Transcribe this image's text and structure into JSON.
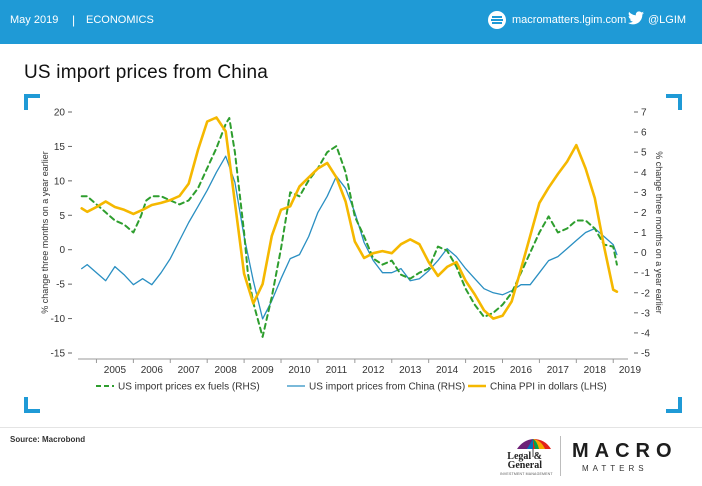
{
  "header": {
    "date": "May 2019",
    "separator": "|",
    "section": "ECONOMICS",
    "website": "macromatters.lgim.com",
    "twitter": "@LGIM",
    "bar_color": "#1f9ad6"
  },
  "page_title": "US import prices from China",
  "footer": {
    "source": "Source: Macrobond",
    "lg_name_line1": "Legal &",
    "lg_name_line2": "General",
    "lg_sub": "INVESTMENT MANAGEMENT",
    "brand_macro": "MACRO",
    "brand_matters": "MATTERS"
  },
  "chart_data": {
    "type": "line",
    "x_tick_labels": [
      "2005",
      "2006",
      "2007",
      "2008",
      "2009",
      "2010",
      "2011",
      "2012",
      "2013",
      "2014",
      "2015",
      "2016",
      "2017",
      "2018",
      "2019"
    ],
    "xlim": [
      2004.5,
      2019.4
    ],
    "left_axis": {
      "label": "% change three months on a year earlier",
      "ylim": [
        -15,
        20
      ],
      "ticks": [
        20,
        15,
        10,
        5,
        0,
        -5,
        -10,
        -15
      ],
      "tick_labels": [
        "20",
        "15",
        "10",
        "5",
        "0",
        "-5",
        "-10",
        "-15"
      ]
    },
    "right_axis": {
      "label": "% change three months on a year earlier",
      "ylim": [
        -5,
        7
      ],
      "ticks": [
        7,
        6,
        5,
        4,
        3,
        2,
        1,
        0,
        -1,
        -2,
        -3,
        -4,
        -5
      ],
      "tick_labels": [
        "7",
        "6",
        "5",
        "4",
        "3",
        "2",
        "1",
        "0",
        "-1",
        "-2",
        "-3",
        "-4",
        "-5"
      ]
    },
    "series": [
      {
        "name": "US import prices ex fuels (RHS)",
        "axis": "right",
        "color": "#2e9e2e",
        "style": "dashed",
        "x": [
          2004.6,
          2004.75,
          2005.0,
          2005.25,
          2005.5,
          2005.75,
          2006.0,
          2006.2,
          2006.35,
          2006.5,
          2006.75,
          2007.0,
          2007.25,
          2007.5,
          2007.75,
          2008.0,
          2008.25,
          2008.5,
          2008.6,
          2008.75,
          2009.0,
          2009.1,
          2009.25,
          2009.5,
          2009.75,
          2010.0,
          2010.25,
          2010.5,
          2010.75,
          2011.0,
          2011.25,
          2011.5,
          2011.75,
          2012.0,
          2012.25,
          2012.5,
          2012.75,
          2013.0,
          2013.25,
          2013.5,
          2013.75,
          2014.0,
          2014.25,
          2014.5,
          2014.75,
          2015.0,
          2015.25,
          2015.5,
          2015.75,
          2016.0,
          2016.25,
          2016.5,
          2016.75,
          2017.0,
          2017.25,
          2017.5,
          2017.75,
          2018.0,
          2018.25,
          2018.5,
          2018.75,
          2019.0,
          2019.1
        ],
        "y": [
          2.8,
          2.8,
          2.4,
          2.0,
          1.6,
          1.4,
          1.0,
          1.8,
          2.6,
          2.8,
          2.8,
          2.6,
          2.4,
          2.6,
          3.2,
          4.2,
          5.2,
          6.4,
          6.7,
          5.0,
          1.0,
          -1.0,
          -2.5,
          -4.2,
          -2.2,
          0.2,
          3.0,
          2.8,
          3.6,
          4.2,
          5.0,
          5.3,
          4.0,
          1.8,
          0.8,
          -0.3,
          -0.6,
          -0.4,
          -1.1,
          -1.3,
          -1.0,
          -0.8,
          0.3,
          0.1,
          -0.7,
          -1.8,
          -2.6,
          -3.2,
          -3.0,
          -2.6,
          -2.0,
          -1.0,
          0.0,
          1.0,
          1.8,
          1.0,
          1.2,
          1.6,
          1.6,
          1.2,
          0.4,
          0.3,
          -0.6
        ]
      },
      {
        "name": "US import prices from China (RHS)",
        "axis": "right",
        "color": "#2a8fc2",
        "style": "solid",
        "x": [
          2004.6,
          2004.75,
          2005.0,
          2005.25,
          2005.5,
          2005.75,
          2006.0,
          2006.25,
          2006.5,
          2006.75,
          2007.0,
          2007.25,
          2007.5,
          2007.75,
          2008.0,
          2008.25,
          2008.5,
          2008.75,
          2009.0,
          2009.25,
          2009.5,
          2009.75,
          2010.0,
          2010.25,
          2010.5,
          2010.75,
          2011.0,
          2011.25,
          2011.5,
          2011.75,
          2012.0,
          2012.25,
          2012.5,
          2012.75,
          2013.0,
          2013.25,
          2013.5,
          2013.75,
          2014.0,
          2014.25,
          2014.5,
          2014.75,
          2015.0,
          2015.25,
          2015.5,
          2015.75,
          2016.0,
          2016.25,
          2016.5,
          2016.75,
          2017.0,
          2017.25,
          2017.5,
          2017.75,
          2018.0,
          2018.25,
          2018.5,
          2018.75,
          2019.0,
          2019.1
        ],
        "y": [
          -0.8,
          -0.6,
          -1.0,
          -1.4,
          -0.7,
          -1.1,
          -1.6,
          -1.3,
          -1.6,
          -1.0,
          -0.3,
          0.6,
          1.5,
          2.3,
          3.1,
          4.0,
          4.8,
          3.5,
          0.8,
          -1.4,
          -3.3,
          -2.4,
          -1.3,
          -0.3,
          -0.1,
          0.8,
          2.0,
          2.8,
          3.8,
          3.2,
          2.0,
          0.5,
          -0.4,
          -1.0,
          -1.0,
          -0.8,
          -1.4,
          -1.3,
          -0.9,
          -0.4,
          0.2,
          -0.2,
          -0.8,
          -1.3,
          -1.8,
          -2.0,
          -2.1,
          -1.9,
          -1.6,
          -1.6,
          -1.0,
          -0.4,
          -0.2,
          0.2,
          0.6,
          1.0,
          1.2,
          0.8,
          0.4,
          -0.1
        ]
      },
      {
        "name": "China PPI in dollars (LHS)",
        "axis": "left",
        "color": "#f5b800",
        "style": "solid",
        "x": [
          2004.6,
          2004.75,
          2005.0,
          2005.25,
          2005.5,
          2005.75,
          2006.0,
          2006.25,
          2006.5,
          2006.75,
          2007.0,
          2007.25,
          2007.5,
          2007.75,
          2008.0,
          2008.25,
          2008.5,
          2008.7,
          2009.0,
          2009.25,
          2009.5,
          2009.75,
          2010.0,
          2010.25,
          2010.5,
          2010.75,
          2011.0,
          2011.25,
          2011.5,
          2011.75,
          2012.0,
          2012.25,
          2012.5,
          2012.75,
          2013.0,
          2013.25,
          2013.5,
          2013.75,
          2014.0,
          2014.25,
          2014.5,
          2014.75,
          2015.0,
          2015.25,
          2015.5,
          2015.75,
          2016.0,
          2016.25,
          2016.5,
          2016.75,
          2017.0,
          2017.25,
          2017.5,
          2017.75,
          2018.0,
          2018.25,
          2018.5,
          2018.75,
          2019.0,
          2019.1
        ],
        "y": [
          6.0,
          5.5,
          6.2,
          7.0,
          6.2,
          5.8,
          5.2,
          5.8,
          6.5,
          6.8,
          7.2,
          7.8,
          9.6,
          14.5,
          18.6,
          19.2,
          17.2,
          9.0,
          -3.5,
          -7.8,
          -5.0,
          2.0,
          5.8,
          6.3,
          9.2,
          10.5,
          11.8,
          12.6,
          10.5,
          7.0,
          1.2,
          -1.2,
          -0.5,
          -0.2,
          -0.5,
          0.8,
          1.5,
          0.8,
          -1.8,
          -3.8,
          -2.5,
          -1.8,
          -4.5,
          -6.5,
          -8.8,
          -10.0,
          -9.6,
          -7.5,
          -2.8,
          2.0,
          6.8,
          9.0,
          11.0,
          12.8,
          15.2,
          11.8,
          7.5,
          0.5,
          -5.8,
          -6.1
        ]
      }
    ],
    "grid": false,
    "legend_position": "bottom"
  }
}
